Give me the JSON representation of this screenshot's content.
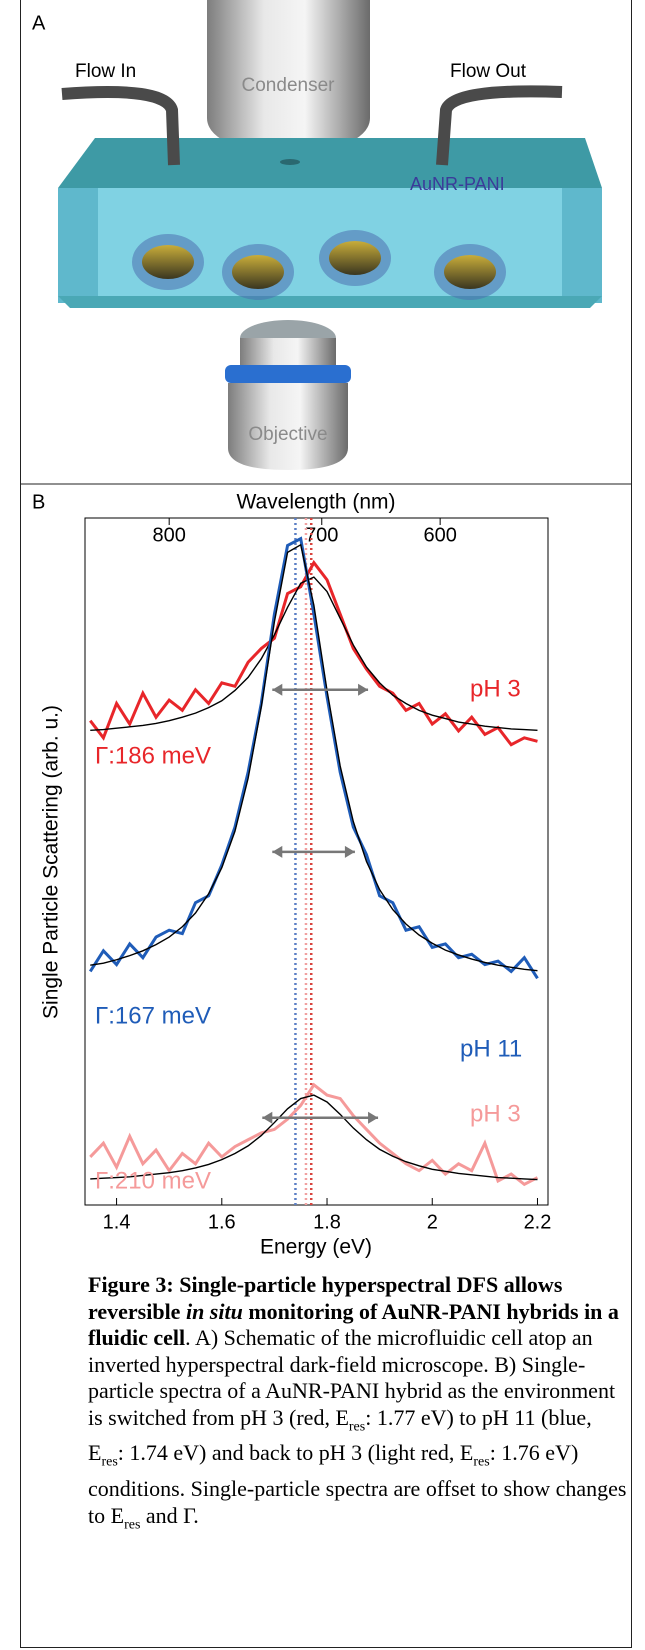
{
  "panel_a": {
    "label": "A",
    "flow_in": "Flow In",
    "condenser": "Condenser",
    "flow_out": "Flow Out",
    "hybrid": "AuNR-PANI",
    "objective": "Objective"
  },
  "chart_data": {
    "type": "line",
    "panel_label": "B",
    "top_axis_label": "Wavelength (nm)",
    "xlabel": "Energy (eV)",
    "ylabel": "Single Particle Scattering (arb. u.)",
    "xlim": [
      1.34,
      2.22
    ],
    "xticks": [
      1.4,
      1.6,
      1.8,
      2,
      2.2
    ],
    "top_ticks": [
      {
        "value": 1.5,
        "label": "800"
      },
      {
        "value": 1.79,
        "label": "700"
      },
      {
        "value": 2.015,
        "label": "600"
      }
    ],
    "ylim": [
      0,
      10
    ],
    "x": [
      1.35,
      1.375,
      1.4,
      1.425,
      1.45,
      1.475,
      1.5,
      1.525,
      1.55,
      1.575,
      1.6,
      1.625,
      1.65,
      1.675,
      1.7,
      1.725,
      1.75,
      1.775,
      1.8,
      1.825,
      1.85,
      1.875,
      1.9,
      1.925,
      1.95,
      1.975,
      2,
      2.025,
      2.05,
      2.075,
      2.1,
      2.125,
      2.15,
      2.175,
      2.2
    ],
    "series": [
      {
        "name": "pH 3",
        "color": "#e8262a",
        "values": [
          7.05,
          6.8,
          7.3,
          7.0,
          7.45,
          7.1,
          7.35,
          7.2,
          7.5,
          7.3,
          7.6,
          7.55,
          7.9,
          8.1,
          8.25,
          8.9,
          9.0,
          9.35,
          9.1,
          8.6,
          8.1,
          7.8,
          7.55,
          7.45,
          7.2,
          7.3,
          7.0,
          7.15,
          6.9,
          7.1,
          6.85,
          6.95,
          6.7,
          6.8,
          6.75
        ]
      },
      {
        "color": "#000000",
        "values": [
          6.91,
          6.92,
          6.94,
          6.96,
          6.98,
          7.01,
          7.05,
          7.1,
          7.16,
          7.24,
          7.34,
          7.49,
          7.68,
          7.95,
          8.3,
          8.7,
          9.05,
          9.14,
          8.93,
          8.54,
          8.15,
          7.83,
          7.6,
          7.42,
          7.3,
          7.2,
          7.13,
          7.08,
          7.03,
          7.0,
          6.97,
          6.95,
          6.93,
          6.92,
          6.91
        ]
      },
      {
        "name": "pH 11",
        "color": "#1f5cb8",
        "values": [
          3.4,
          3.7,
          3.5,
          3.8,
          3.6,
          3.9,
          4.0,
          3.95,
          4.4,
          4.5,
          4.95,
          5.5,
          6.3,
          7.3,
          8.6,
          9.6,
          9.7,
          8.6,
          7.4,
          6.3,
          5.5,
          5.1,
          4.5,
          4.4,
          4.0,
          4.05,
          3.75,
          3.8,
          3.6,
          3.65,
          3.5,
          3.55,
          3.4,
          3.6,
          3.3
        ]
      },
      {
        "color": "#000000",
        "values": [
          3.49,
          3.52,
          3.57,
          3.63,
          3.7,
          3.79,
          3.9,
          4.05,
          4.25,
          4.53,
          4.91,
          5.44,
          6.21,
          7.25,
          8.49,
          9.5,
          9.61,
          8.73,
          7.49,
          6.39,
          5.58,
          5.0,
          4.59,
          4.3,
          4.09,
          3.93,
          3.81,
          3.71,
          3.64,
          3.58,
          3.53,
          3.49,
          3.46,
          3.43,
          3.41
        ]
      },
      {
        "name": "pH 3",
        "color": "#f59a9a",
        "values": [
          0.7,
          0.9,
          0.55,
          1.0,
          0.6,
          0.8,
          0.5,
          0.75,
          0.6,
          0.9,
          0.7,
          0.85,
          0.95,
          1.05,
          1.1,
          1.25,
          1.45,
          1.75,
          1.6,
          1.55,
          1.3,
          1.1,
          0.9,
          0.75,
          0.6,
          0.5,
          0.65,
          0.45,
          0.6,
          0.5,
          0.9,
          0.35,
          0.45,
          0.3,
          0.4
        ]
      },
      {
        "color": "#000000",
        "values": [
          0.38,
          0.39,
          0.4,
          0.41,
          0.43,
          0.45,
          0.47,
          0.5,
          0.54,
          0.59,
          0.66,
          0.75,
          0.86,
          1.01,
          1.2,
          1.4,
          1.55,
          1.6,
          1.5,
          1.32,
          1.12,
          0.95,
          0.81,
          0.71,
          0.63,
          0.57,
          0.52,
          0.49,
          0.46,
          0.44,
          0.42,
          0.4,
          0.39,
          0.38,
          0.37
        ]
      }
    ],
    "vlines": [
      {
        "x": 1.74,
        "color": "#5b7fc4"
      },
      {
        "x": 1.76,
        "color": "#f0a0a0"
      },
      {
        "x": 1.77,
        "color": "#d9443f"
      }
    ],
    "arrows": [
      {
        "x": [
          1.696,
          1.878
        ],
        "y": 7.5
      },
      {
        "x": [
          1.696,
          1.853
        ],
        "y": 5.14
      },
      {
        "x": [
          1.677,
          1.897
        ],
        "y": 1.27
      }
    ],
    "annotations": [
      "Γ:186 meV",
      "Γ:167 meV",
      "Γ:210 meV"
    ]
  },
  "caption": {
    "runs": [
      {
        "text": "Figure 3: Single-particle hyperspectral DFS allows reversible ",
        "style": "b"
      },
      {
        "text": "in situ",
        "style": "bi"
      },
      {
        "text": " monitoring of AuNR-PANI hybrids in a fluidic cell",
        "style": "b"
      },
      {
        "text": ". A) Schematic of the microfluidic cell atop an inverted hyperspectral dark-field microscope. B) Single-particle spectra of a AuNR-PANI hybrid as the environment is switched from pH 3 (red, E",
        "style": "n"
      },
      {
        "text": "res",
        "style": "sub"
      },
      {
        "text": ": 1.77 eV) to pH 11 (blue, E",
        "style": "n"
      },
      {
        "text": "res",
        "style": "sub"
      },
      {
        "text": ": 1.74 eV) and back to pH 3 (light red, E",
        "style": "n"
      },
      {
        "text": "res",
        "style": "sub"
      },
      {
        "text": ": 1.76 eV) conditions. Single-particle spectra are offset to show changes to E",
        "style": "n"
      },
      {
        "text": "res",
        "style": "sub"
      },
      {
        "text": " and Γ.",
        "style": "n"
      }
    ]
  }
}
